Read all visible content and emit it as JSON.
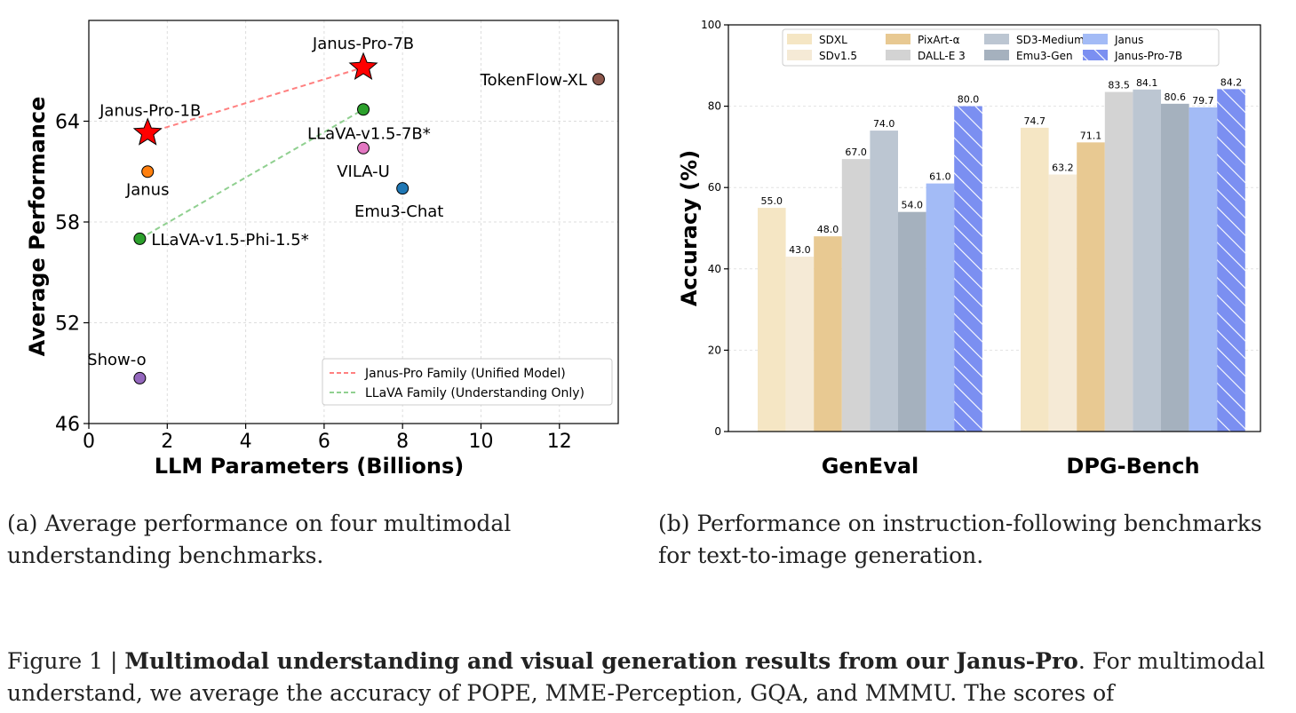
{
  "chart_data": [
    {
      "type": "scatter",
      "xlabel": "LLM Parameters (Billions)",
      "ylabel": "Average Performance",
      "xlim": [
        0,
        13.5
      ],
      "ylim": [
        46,
        70
      ],
      "xticks": [
        "0",
        "2",
        "4",
        "6",
        "8",
        "10",
        "12"
      ],
      "yticks": [
        "46",
        "52",
        "58",
        "64"
      ],
      "grid": true,
      "legend_position": "bottom-right",
      "points": [
        {
          "label": "Janus-Pro-7B",
          "x": 7.0,
          "y": 67.2,
          "marker": "star",
          "color": "#ff0000"
        },
        {
          "label": "Janus-Pro-1B",
          "x": 1.5,
          "y": 63.3,
          "marker": "star",
          "color": "#ff0000"
        },
        {
          "label": "TokenFlow-XL",
          "x": 13.0,
          "y": 66.5,
          "marker": "circle",
          "color": "#8c564b"
        },
        {
          "label": "LLaVA-v1.5-7B*",
          "x": 7.0,
          "y": 64.7,
          "marker": "circle",
          "color": "#2ca02c"
        },
        {
          "label": "VILA-U",
          "x": 7.0,
          "y": 62.4,
          "marker": "circle",
          "color": "#e377c2"
        },
        {
          "label": "Janus",
          "x": 1.5,
          "y": 61.0,
          "marker": "circle",
          "color": "#ff7f0e"
        },
        {
          "label": "Emu3-Chat",
          "x": 8.0,
          "y": 60.0,
          "marker": "circle",
          "color": "#1f77b4"
        },
        {
          "label": "LLaVA-v1.5-Phi-1.5*",
          "x": 1.3,
          "y": 57.0,
          "marker": "circle",
          "color": "#2ca02c"
        },
        {
          "label": "Show-o",
          "x": 1.3,
          "y": 48.7,
          "marker": "circle",
          "color": "#9467bd"
        }
      ],
      "lines": [
        {
          "name": "Janus-Pro Family (Unified Model)",
          "color": "#ff8080",
          "x": [
            1.5,
            7.0
          ],
          "y": [
            63.3,
            67.2
          ]
        },
        {
          "name": "LLaVA Family (Understanding Only)",
          "color": "#90d090",
          "x": [
            1.3,
            7.0
          ],
          "y": [
            57.0,
            64.7
          ]
        }
      ]
    },
    {
      "type": "bar",
      "ylabel": "Accuracy (%)",
      "ylim": [
        0,
        100
      ],
      "yticks": [
        "0",
        "20",
        "40",
        "60",
        "80",
        "100"
      ],
      "categories": [
        "GenEval",
        "DPG-Bench"
      ],
      "grid": true,
      "legend_position": "top",
      "series": [
        {
          "name": "SDXL",
          "color": "#f5e6c4",
          "values": [
            55.0,
            74.7
          ]
        },
        {
          "name": "SDv1.5",
          "color": "#f5ead6",
          "values": [
            43.0,
            63.2
          ]
        },
        {
          "name": "PixArt-α",
          "color": "#e8c992",
          "values": [
            48.0,
            71.1
          ]
        },
        {
          "name": "DALL-E 3",
          "color": "#d3d3d3",
          "values": [
            67.0,
            83.5
          ]
        },
        {
          "name": "SD3-Medium",
          "color": "#bcc6d2",
          "values": [
            74.0,
            84.1
          ]
        },
        {
          "name": "Emu3-Gen",
          "color": "#a5b1be",
          "values": [
            54.0,
            80.6
          ]
        },
        {
          "name": "Janus",
          "color": "#a3bbf6",
          "values": [
            61.0,
            79.7
          ]
        },
        {
          "name": "Janus-Pro-7B",
          "color": "#7b8ff1",
          "hatch": true,
          "values": [
            80.0,
            84.2
          ]
        }
      ],
      "value_labels": [
        [
          "55.0",
          "43.0",
          "48.0",
          "67.0",
          "74.0",
          "54.0",
          "61.0",
          "80.0"
        ],
        [
          "74.7",
          "63.2",
          "71.1",
          "83.5",
          "84.1",
          "80.6",
          "79.7",
          "84.2"
        ]
      ]
    }
  ],
  "captions": {
    "a": "(a) Average performance on four multimodal understanding benchmarks.",
    "b": "(b) Performance on instruction-following benchmarks for text-to-image generation.",
    "figure_prefix": "Figure 1 | ",
    "figure_bold": "Multimodal understanding and visual generation results from our Janus-Pro",
    "figure_rest": ". For multimodal understand, we average the accuracy of POPE, MME-Perception, GQA, and MMMU. The scores of"
  }
}
